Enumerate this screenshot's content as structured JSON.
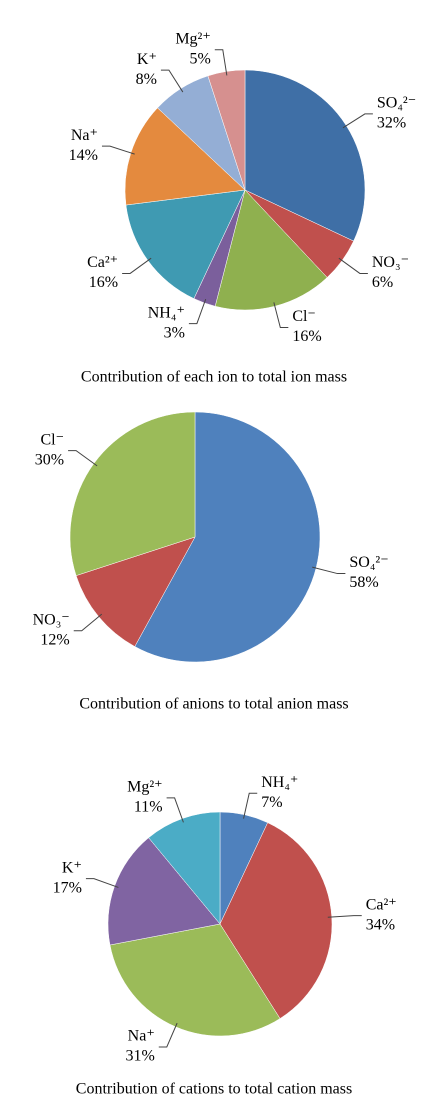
{
  "chart_data": [
    {
      "type": "pie",
      "title": "Contribution of each ion to total ion mass",
      "categories": [
        "SO₄²⁻",
        "NO₃⁻",
        "Cl⁻",
        "NH₄⁺",
        "Ca²⁺",
        "Na⁺",
        "K⁺",
        "Mg²⁺"
      ],
      "values": [
        32,
        6,
        16,
        3,
        16,
        14,
        8,
        5
      ],
      "value_labels": [
        "32%",
        "6%",
        "16%",
        "3%",
        "16%",
        "14%",
        "8%",
        "5%"
      ],
      "colors": [
        "#3f6fa6",
        "#c0504d",
        "#8fb04f",
        "#7b5f9c",
        "#3f9ab2",
        "#e48a3e",
        "#94aed5",
        "#d6908f"
      ]
    },
    {
      "type": "pie",
      "title": "Contribution of anions to total anion mass",
      "categories": [
        "SO₄²⁻",
        "NO₃⁻",
        "Cl⁻"
      ],
      "values": [
        58,
        12,
        30
      ],
      "value_labels": [
        "58%",
        "12%",
        "30%"
      ],
      "colors": [
        "#4f81bd",
        "#c0504d",
        "#9bbb59"
      ]
    },
    {
      "type": "pie",
      "title": "Contribution of cations to total cation mass",
      "categories": [
        "NH₄⁺",
        "Ca²⁺",
        "Na⁺",
        "K⁺",
        "Mg²⁺"
      ],
      "values": [
        7,
        34,
        31,
        17,
        11
      ],
      "value_labels": [
        "7%",
        "34%",
        "31%",
        "17%",
        "11%"
      ],
      "colors": [
        "#4f81bd",
        "#c0504d",
        "#9bbb59",
        "#8064a2",
        "#4bacc6"
      ]
    }
  ]
}
